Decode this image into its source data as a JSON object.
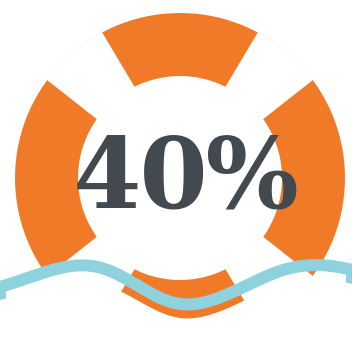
{
  "graphic": {
    "icon": "lifebuoy-icon",
    "decoration": "water-waves"
  },
  "headline": {
    "text": "40%"
  },
  "colors": {
    "ring": "#F07A27",
    "ring_stripe": "#FFFFFF",
    "text": "#424A50",
    "water": "#8ED2DD",
    "background": "#FFFFFF"
  }
}
